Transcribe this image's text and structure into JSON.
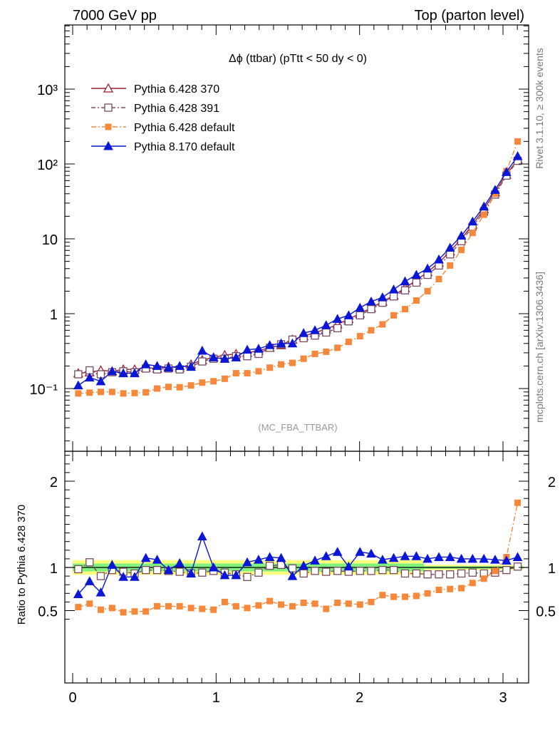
{
  "header": {
    "left": "7000 GeV pp",
    "right": "Top (parton level)"
  },
  "side_labels": {
    "right_top": "Rivet 3.1.10, ≥ 300k events",
    "right_bottom": "mcplots.cern.ch [arXiv:1306.3436]"
  },
  "colors": {
    "p6_370": "#9a1f33",
    "p6_391": "#7a4a60",
    "p6_default": "#f5883a",
    "p8_default": "#0a17d6",
    "band_inner": "#7ff27f",
    "band_outer": "#fbfb7d"
  },
  "chart_data": [
    {
      "type": "line",
      "title": "Δϕ (ttbar) (pTtt < 50 dy < 0)",
      "watermark": "(MC_FBA_TTBAR)",
      "xlabel": "",
      "ylabel": "",
      "yscale": "log",
      "xlim": [
        -0.05,
        3.2
      ],
      "ylim": [
        0.015,
        8000
      ],
      "y_tick_labels": [
        "10⁻¹",
        "1",
        "10",
        "10²",
        "10³"
      ],
      "legend_position": "top-left",
      "x": [
        0.039,
        0.118,
        0.196,
        0.275,
        0.353,
        0.432,
        0.51,
        0.589,
        0.668,
        0.746,
        0.825,
        0.903,
        0.982,
        1.06,
        1.139,
        1.217,
        1.296,
        1.374,
        1.453,
        1.532,
        1.61,
        1.689,
        1.767,
        1.846,
        1.924,
        2.003,
        2.081,
        2.16,
        2.238,
        2.317,
        2.396,
        2.474,
        2.553,
        2.631,
        2.71,
        2.788,
        2.867,
        2.945,
        3.024,
        3.102
      ],
      "series": [
        {
          "name": "Pythia 6.428 370",
          "marker": "open-triangle",
          "color": "#9a1f33",
          "values": [
            0.16,
            0.165,
            0.175,
            0.17,
            0.18,
            0.18,
            0.19,
            0.185,
            0.195,
            0.19,
            0.21,
            0.24,
            0.26,
            0.28,
            0.29,
            0.3,
            0.32,
            0.35,
            0.38,
            0.45,
            0.5,
            0.56,
            0.62,
            0.72,
            0.85,
            1.0,
            1.2,
            1.45,
            1.75,
            2.2,
            2.8,
            3.6,
            4.8,
            6.8,
            10.0,
            15.5,
            25.0,
            42.0,
            72.0,
            115.0
          ]
        },
        {
          "name": "Pythia 6.428 391",
          "marker": "open-square",
          "color": "#7a4a60",
          "values": [
            0.155,
            0.175,
            0.155,
            0.165,
            0.17,
            0.165,
            0.185,
            0.18,
            0.185,
            0.18,
            0.195,
            0.23,
            0.25,
            0.25,
            0.27,
            0.27,
            0.29,
            0.35,
            0.39,
            0.45,
            0.47,
            0.51,
            0.56,
            0.64,
            0.79,
            0.95,
            1.15,
            1.4,
            1.7,
            2.05,
            2.6,
            3.3,
            4.4,
            6.2,
            9.3,
            14.5,
            23.0,
            39.0,
            70.0,
            110.0
          ]
        },
        {
          "name": "Pythia 6.428 default",
          "marker": "filled-square",
          "color": "#f5883a",
          "values": [
            0.086,
            0.088,
            0.09,
            0.09,
            0.086,
            0.087,
            0.089,
            0.1,
            0.105,
            0.104,
            0.11,
            0.12,
            0.125,
            0.135,
            0.16,
            0.16,
            0.17,
            0.19,
            0.21,
            0.22,
            0.25,
            0.29,
            0.31,
            0.35,
            0.42,
            0.5,
            0.6,
            0.72,
            0.95,
            1.15,
            1.5,
            2.0,
            2.9,
            4.4,
            7.1,
            12.0,
            21.0,
            40.0,
            80.0,
            200.0
          ]
        },
        {
          "name": "Pythia 8.170 default",
          "marker": "filled-triangle",
          "color": "#0a17d6",
          "values": [
            0.11,
            0.14,
            0.125,
            0.17,
            0.16,
            0.16,
            0.21,
            0.2,
            0.19,
            0.2,
            0.195,
            0.32,
            0.26,
            0.25,
            0.26,
            0.33,
            0.34,
            0.38,
            0.4,
            0.4,
            0.55,
            0.6,
            0.7,
            0.85,
            0.95,
            1.2,
            1.45,
            1.65,
            2.1,
            2.7,
            3.3,
            4.0,
            5.3,
            7.6,
            11.0,
            17.0,
            27.0,
            45.0,
            78.0,
            127.0
          ]
        }
      ]
    },
    {
      "type": "line",
      "title": "",
      "xlabel": "",
      "ylabel": "Ratio to Pythia 6.428 370",
      "xlim": [
        -0.05,
        3.2
      ],
      "ylim": [
        0.38,
        2.4
      ],
      "x_tick_labels": [
        "0",
        "1",
        "2",
        "3"
      ],
      "y_tick_labels": [
        "0.5",
        "1",
        "2"
      ],
      "reference": 1.0,
      "x": [
        0.039,
        0.118,
        0.196,
        0.275,
        0.353,
        0.432,
        0.51,
        0.589,
        0.668,
        0.746,
        0.825,
        0.903,
        0.982,
        1.06,
        1.139,
        1.217,
        1.296,
        1.374,
        1.453,
        1.532,
        1.61,
        1.689,
        1.767,
        1.846,
        1.924,
        2.003,
        2.081,
        2.16,
        2.238,
        2.317,
        2.396,
        2.474,
        2.553,
        2.631,
        2.71,
        2.788,
        2.867,
        2.945,
        3.024,
        3.102
      ],
      "series": [
        {
          "name": "Pythia 6.428 391",
          "marker": "open-square",
          "color": "#7a4a60",
          "values": [
            0.98,
            1.06,
            0.9,
            0.97,
            0.95,
            0.93,
            0.97,
            0.97,
            0.96,
            0.95,
            0.93,
            0.94,
            0.96,
            0.94,
            0.92,
            0.89,
            0.94,
            1.02,
            1.03,
            0.99,
            0.93,
            0.96,
            0.95,
            0.96,
            0.95,
            0.96,
            0.96,
            0.97,
            0.97,
            0.93,
            0.93,
            0.92,
            0.92,
            0.92,
            0.93,
            0.94,
            0.93,
            0.94,
            0.97,
            1.01
          ]
        },
        {
          "name": "Pythia 6.428 default",
          "marker": "filled-square",
          "color": "#f5883a",
          "values": [
            0.54,
            0.58,
            0.51,
            0.53,
            0.48,
            0.49,
            0.49,
            0.55,
            0.55,
            0.55,
            0.53,
            0.52,
            0.51,
            0.6,
            0.55,
            0.53,
            0.56,
            0.61,
            0.57,
            0.55,
            0.59,
            0.58,
            0.52,
            0.59,
            0.58,
            0.57,
            0.6,
            0.68,
            0.66,
            0.66,
            0.67,
            0.7,
            0.74,
            0.75,
            0.76,
            0.82,
            0.87,
            0.96,
            1.12,
            1.75
          ]
        },
        {
          "name": "Pythia 8.170 default",
          "marker": "filled-triangle",
          "color": "#0a17d6",
          "values": [
            0.69,
            0.84,
            0.71,
            1.03,
            0.89,
            0.89,
            1.11,
            1.09,
            0.97,
            1.05,
            0.93,
            1.36,
            1.0,
            0.91,
            0.91,
            1.06,
            1.09,
            1.12,
            1.11,
            0.9,
            1.02,
            1.08,
            1.13,
            1.18,
            1.01,
            1.18,
            1.16,
            1.09,
            1.11,
            1.13,
            1.13,
            1.1,
            1.12,
            1.12,
            1.1,
            1.1,
            1.1,
            1.09,
            1.08,
            1.12
          ]
        }
      ]
    }
  ]
}
